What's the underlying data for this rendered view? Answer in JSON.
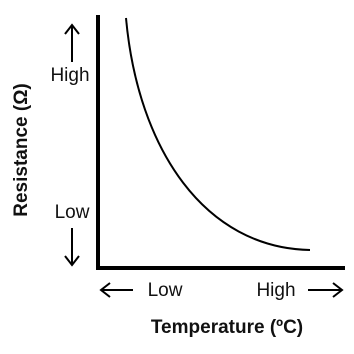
{
  "axes": {
    "y_label": "Resistance (Ω)",
    "x_label": "Temperature (ºC)",
    "y_high": "High",
    "y_low": "Low",
    "x_low": "Low",
    "x_high": "High"
  }
}
